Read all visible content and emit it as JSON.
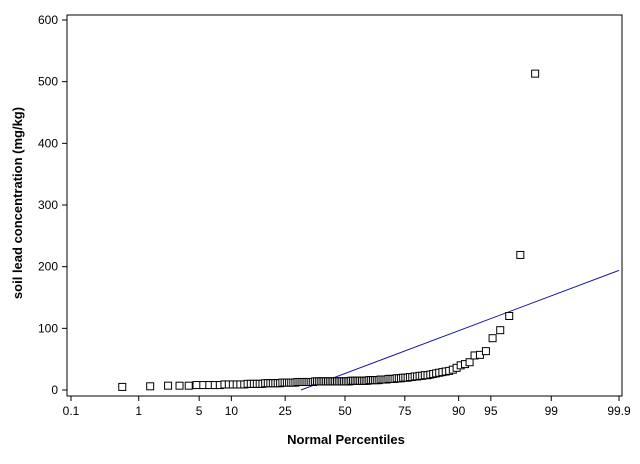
{
  "chart_data": {
    "type": "scatter",
    "subtype": "normal-probability-plot",
    "title": "",
    "xlabel": "Normal Percentiles",
    "ylabel": "soil lead concentration (mg/kg)",
    "x_scale": "normal-probability",
    "xlim": [
      0.1,
      99.9
    ],
    "ylim": [
      0,
      610
    ],
    "x_ticks": [
      0.1,
      1,
      5,
      10,
      25,
      50,
      75,
      90,
      95,
      99,
      99.9
    ],
    "x_tick_labels": [
      "0.1",
      "1",
      "5",
      "10",
      "25",
      "50",
      "75",
      "90",
      "95",
      "99",
      "99.9"
    ],
    "y_ticks": [
      0,
      100,
      200,
      300,
      400,
      500,
      600
    ],
    "y_tick_labels": [
      "0",
      "100",
      "200",
      "300",
      "400",
      "500",
      "600"
    ],
    "grid": false,
    "legend": "none",
    "marker": "open-square",
    "colors": {
      "points": "#000000",
      "fit_line": "#1a1aa6",
      "axes": "#000000"
    },
    "points": [
      {
        "x": 0.6,
        "y": 5
      },
      {
        "x": 1.4,
        "y": 6
      },
      {
        "x": 2.3,
        "y": 7
      },
      {
        "x": 3.1,
        "y": 7
      },
      {
        "x": 3.9,
        "y": 7
      },
      {
        "x": 4.7,
        "y": 8
      },
      {
        "x": 5.5,
        "y": 8
      },
      {
        "x": 6.3,
        "y": 8
      },
      {
        "x": 7.1,
        "y": 8
      },
      {
        "x": 7.9,
        "y": 8
      },
      {
        "x": 8.7,
        "y": 9
      },
      {
        "x": 9.5,
        "y": 9
      },
      {
        "x": 10.3,
        "y": 9
      },
      {
        "x": 11.1,
        "y": 9
      },
      {
        "x": 11.9,
        "y": 9
      },
      {
        "x": 12.8,
        "y": 9
      },
      {
        "x": 13.6,
        "y": 10
      },
      {
        "x": 14.4,
        "y": 10
      },
      {
        "x": 15.2,
        "y": 10
      },
      {
        "x": 16.0,
        "y": 10
      },
      {
        "x": 16.8,
        "y": 10
      },
      {
        "x": 17.6,
        "y": 10
      },
      {
        "x": 18.4,
        "y": 11
      },
      {
        "x": 19.2,
        "y": 11
      },
      {
        "x": 20.0,
        "y": 11
      },
      {
        "x": 20.8,
        "y": 11
      },
      {
        "x": 21.6,
        "y": 11
      },
      {
        "x": 22.4,
        "y": 11
      },
      {
        "x": 23.2,
        "y": 11
      },
      {
        "x": 24.0,
        "y": 12
      },
      {
        "x": 24.8,
        "y": 12
      },
      {
        "x": 25.6,
        "y": 12
      },
      {
        "x": 26.4,
        "y": 12
      },
      {
        "x": 27.2,
        "y": 12
      },
      {
        "x": 28.0,
        "y": 12
      },
      {
        "x": 28.8,
        "y": 12
      },
      {
        "x": 29.6,
        "y": 13
      },
      {
        "x": 30.4,
        "y": 13
      },
      {
        "x": 31.2,
        "y": 13
      },
      {
        "x": 32.0,
        "y": 13
      },
      {
        "x": 32.8,
        "y": 13
      },
      {
        "x": 33.6,
        "y": 13
      },
      {
        "x": 34.4,
        "y": 13
      },
      {
        "x": 35.2,
        "y": 13
      },
      {
        "x": 36.0,
        "y": 13
      },
      {
        "x": 36.8,
        "y": 14
      },
      {
        "x": 37.6,
        "y": 14
      },
      {
        "x": 38.4,
        "y": 14
      },
      {
        "x": 39.2,
        "y": 14
      },
      {
        "x": 40.0,
        "y": 14
      },
      {
        "x": 40.8,
        "y": 14
      },
      {
        "x": 41.6,
        "y": 14
      },
      {
        "x": 42.4,
        "y": 14
      },
      {
        "x": 43.2,
        "y": 14
      },
      {
        "x": 44.0,
        "y": 14
      },
      {
        "x": 44.8,
        "y": 14
      },
      {
        "x": 45.6,
        "y": 14
      },
      {
        "x": 46.4,
        "y": 14
      },
      {
        "x": 47.2,
        "y": 14
      },
      {
        "x": 48.0,
        "y": 14
      },
      {
        "x": 48.8,
        "y": 14
      },
      {
        "x": 49.6,
        "y": 14
      },
      {
        "x": 50.4,
        "y": 14
      },
      {
        "x": 51.2,
        "y": 14
      },
      {
        "x": 52.0,
        "y": 14
      },
      {
        "x": 52.8,
        "y": 15
      },
      {
        "x": 53.6,
        "y": 15
      },
      {
        "x": 54.4,
        "y": 15
      },
      {
        "x": 55.2,
        "y": 15
      },
      {
        "x": 56.0,
        "y": 15
      },
      {
        "x": 56.8,
        "y": 15
      },
      {
        "x": 57.6,
        "y": 15
      },
      {
        "x": 58.4,
        "y": 15
      },
      {
        "x": 59.2,
        "y": 15
      },
      {
        "x": 60.0,
        "y": 15
      },
      {
        "x": 60.8,
        "y": 16
      },
      {
        "x": 61.6,
        "y": 16
      },
      {
        "x": 62.4,
        "y": 16
      },
      {
        "x": 63.2,
        "y": 16
      },
      {
        "x": 64.0,
        "y": 16
      },
      {
        "x": 64.8,
        "y": 16
      },
      {
        "x": 65.6,
        "y": 17
      },
      {
        "x": 66.4,
        "y": 17
      },
      {
        "x": 67.2,
        "y": 17
      },
      {
        "x": 68.0,
        "y": 17
      },
      {
        "x": 68.8,
        "y": 18
      },
      {
        "x": 69.6,
        "y": 18
      },
      {
        "x": 70.4,
        "y": 18
      },
      {
        "x": 71.2,
        "y": 18
      },
      {
        "x": 72.0,
        "y": 19
      },
      {
        "x": 72.8,
        "y": 19
      },
      {
        "x": 73.6,
        "y": 19
      },
      {
        "x": 74.4,
        "y": 20
      },
      {
        "x": 75.2,
        "y": 20
      },
      {
        "x": 76.0,
        "y": 20
      },
      {
        "x": 76.8,
        "y": 21
      },
      {
        "x": 77.6,
        "y": 21
      },
      {
        "x": 78.4,
        "y": 22
      },
      {
        "x": 79.2,
        "y": 22
      },
      {
        "x": 80.0,
        "y": 23
      },
      {
        "x": 80.8,
        "y": 23
      },
      {
        "x": 81.6,
        "y": 24
      },
      {
        "x": 82.4,
        "y": 24
      },
      {
        "x": 83.2,
        "y": 25
      },
      {
        "x": 84.0,
        "y": 26
      },
      {
        "x": 84.8,
        "y": 27
      },
      {
        "x": 85.6,
        "y": 28
      },
      {
        "x": 86.4,
        "y": 29
      },
      {
        "x": 87.2,
        "y": 30
      },
      {
        "x": 88.0,
        "y": 31
      },
      {
        "x": 88.8,
        "y": 33
      },
      {
        "x": 89.6,
        "y": 36
      },
      {
        "x": 90.4,
        "y": 40
      },
      {
        "x": 91.2,
        "y": 42
      },
      {
        "x": 92.0,
        "y": 45
      },
      {
        "x": 92.8,
        "y": 56
      },
      {
        "x": 93.6,
        "y": 57
      },
      {
        "x": 94.4,
        "y": 63
      },
      {
        "x": 95.2,
        "y": 84
      },
      {
        "x": 96.0,
        "y": 97
      },
      {
        "x": 96.8,
        "y": 120
      },
      {
        "x": 97.6,
        "y": 219
      },
      {
        "x": 98.4,
        "y": 513
      }
    ],
    "fit_line": {
      "x_start": 31,
      "y_start": 0,
      "x_end": 99.9,
      "y_end": 194
    }
  }
}
